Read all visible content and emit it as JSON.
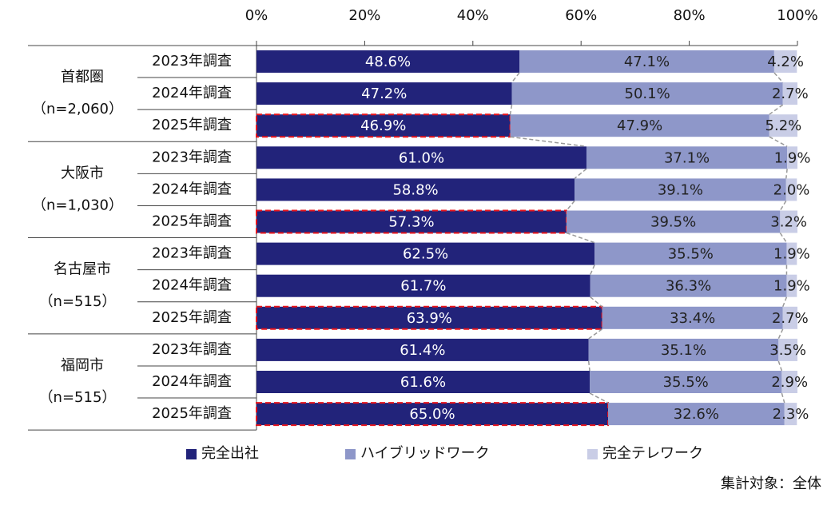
{
  "chart_data": {
    "type": "stacked-bar-horizontal",
    "groups": [
      {
        "name": "首都圏",
        "note": "（n=2,060）",
        "categories": [
          "2023年調査",
          "2024年調査",
          "2025年調査"
        ]
      },
      {
        "name": "大阪市",
        "note": "（n=1,030）",
        "categories": [
          "2023年調査",
          "2024年調査",
          "2025年調査"
        ]
      },
      {
        "name": "名古屋市",
        "note": "（n=515）",
        "categories": [
          "2023年調査",
          "2024年調査",
          "2025年調査"
        ]
      },
      {
        "name": "福岡市",
        "note": "（n=515）",
        "categories": [
          "2023年調査",
          "2024年調査",
          "2025年調査"
        ]
      }
    ],
    "series": [
      {
        "name": "完全出社",
        "color": "#22237a",
        "values": [
          48.6,
          47.2,
          46.9,
          61.0,
          58.8,
          57.3,
          62.5,
          61.7,
          63.9,
          61.4,
          61.6,
          65.0
        ],
        "value_labels": [
          "48.6%",
          "47.2%",
          "46.9%",
          "61.0%",
          "58.8%",
          "57.3%",
          "62.5%",
          "61.7%",
          "63.9%",
          "61.4%",
          "61.6%",
          "65.0%"
        ]
      },
      {
        "name": "ハイブリッドワーク",
        "color": "#8e97c9",
        "values": [
          47.1,
          50.1,
          47.9,
          37.1,
          39.1,
          39.5,
          35.5,
          36.3,
          33.4,
          35.1,
          35.5,
          32.6
        ],
        "value_labels": [
          "47.1%",
          "50.1%",
          "47.9%",
          "37.1%",
          "39.1%",
          "39.5%",
          "35.5%",
          "36.3%",
          "33.4%",
          "35.1%",
          "35.5%",
          "32.6%"
        ]
      },
      {
        "name": "完全テレワーク",
        "color": "#c9cde6",
        "values": [
          4.2,
          2.7,
          5.2,
          1.9,
          2.0,
          3.2,
          1.9,
          1.9,
          2.7,
          3.5,
          2.9,
          2.3
        ],
        "value_labels": [
          "4.2%",
          "2.7%",
          "5.2%",
          "1.9%",
          "2.0%",
          "3.2%",
          "1.9%",
          "1.9%",
          "2.7%",
          "3.5%",
          "2.9%",
          "2.3%"
        ]
      }
    ],
    "xlim": [
      0,
      100
    ],
    "xticks": [
      {
        "value": 0,
        "label": "0%"
      },
      {
        "value": 20,
        "label": "20%"
      },
      {
        "value": 40,
        "label": "40%"
      },
      {
        "value": 60,
        "label": "60%"
      },
      {
        "value": 80,
        "label": "80%"
      },
      {
        "value": 100,
        "label": "100%"
      }
    ],
    "highlight_series": 0,
    "highlight_category": 2,
    "highlight_color": "#e8141b",
    "connectors": true,
    "note": "集計対象：全体"
  }
}
